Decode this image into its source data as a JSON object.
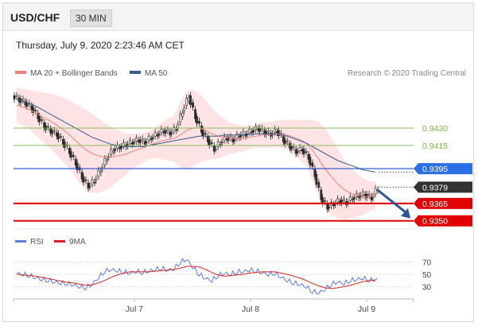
{
  "header": {
    "symbol": "USD/CHF",
    "timeframe": "30 MIN"
  },
  "datetime": "Thursday, July 9, 2020 2:23:46 AM CET",
  "legend": {
    "item1": "MA 20 + Bollinger Bands",
    "item2": "MA 50",
    "credit": "Research © 2020 Trading Central"
  },
  "rsi_legend": {
    "item1": "RSI",
    "item2": "9MA"
  },
  "colors": {
    "ma20": "#f08080",
    "ma50": "#3a5a8c",
    "band_fill": "#fde3e3",
    "green": "#7ab648",
    "blue_line": "#1f4fd0",
    "red_line": "#e00000",
    "current": "#333333",
    "blue_label": "#2a6ee8",
    "rsi": "#5a7ee0",
    "rsi_ma": "#e02020"
  },
  "chart_data": [
    {
      "type": "candlestick",
      "x_tick_labels": [
        "Jul 7",
        "Jul 8",
        "Jul 9"
      ],
      "levels": [
        {
          "value": 0.943,
          "label": "0.9430",
          "style": "green"
        },
        {
          "value": 0.9415,
          "label": "0.9415",
          "style": "green"
        },
        {
          "value": 0.9395,
          "label": "0.9395",
          "style": "blue"
        },
        {
          "value": 0.9379,
          "label": "0.9379",
          "style": "current"
        },
        {
          "value": 0.9365,
          "label": "0.9365",
          "style": "red"
        },
        {
          "value": 0.935,
          "label": "0.9350",
          "style": "red"
        }
      ],
      "close_series": [
        0.9455,
        0.9452,
        0.9448,
        0.944,
        0.9432,
        0.9428,
        0.9425,
        0.9418,
        0.941,
        0.94,
        0.9388,
        0.938,
        0.9385,
        0.9395,
        0.9405,
        0.9412,
        0.9414,
        0.9416,
        0.9418,
        0.942,
        0.9418,
        0.9422,
        0.9425,
        0.9428,
        0.9426,
        0.943,
        0.9445,
        0.9458,
        0.944,
        0.9428,
        0.942,
        0.9412,
        0.9418,
        0.9422,
        0.942,
        0.9424,
        0.9425,
        0.9428,
        0.943,
        0.9427,
        0.9425,
        0.9428,
        0.942,
        0.9415,
        0.941,
        0.9412,
        0.9405,
        0.939,
        0.937,
        0.9362,
        0.9365,
        0.9368,
        0.9366,
        0.937,
        0.9372,
        0.9373,
        0.937,
        0.9379
      ],
      "ma20_series": [
        0.945,
        0.9448,
        0.9446,
        0.9443,
        0.944,
        0.9437,
        0.9434,
        0.943,
        0.9426,
        0.9421,
        0.9416,
        0.9411,
        0.9408,
        0.9406,
        0.9405,
        0.9405,
        0.9406,
        0.9407,
        0.9409,
        0.9411,
        0.9413,
        0.9415,
        0.9417,
        0.9419,
        0.942,
        0.9421,
        0.9424,
        0.9428,
        0.943,
        0.943,
        0.9428,
        0.9425,
        0.9423,
        0.9422,
        0.9421,
        0.9421,
        0.9421,
        0.9422,
        0.9423,
        0.9424,
        0.9424,
        0.9425,
        0.9425,
        0.9424,
        0.9422,
        0.942,
        0.9417,
        0.9411,
        0.9403,
        0.9395,
        0.9388,
        0.9382,
        0.9377,
        0.9374,
        0.9372,
        0.9371,
        0.9371,
        0.9372
      ],
      "ma50_series": [
        0.9455,
        0.9453,
        0.9451,
        0.9449,
        0.9446,
        0.9443,
        0.944,
        0.9437,
        0.9434,
        0.9431,
        0.9428,
        0.9425,
        0.9422,
        0.942,
        0.9418,
        0.9416,
        0.9415,
        0.9414,
        0.9414,
        0.9414,
        0.9414,
        0.9415,
        0.9416,
        0.9417,
        0.9418,
        0.9419,
        0.942,
        0.9421,
        0.9422,
        0.9423,
        0.9423,
        0.9423,
        0.9423,
        0.9424,
        0.9424,
        0.9424,
        0.9424,
        0.9425,
        0.9425,
        0.9425,
        0.9425,
        0.9425,
        0.9424,
        0.9423,
        0.9421,
        0.9419,
        0.9417,
        0.9414,
        0.9411,
        0.9408,
        0.9405,
        0.9402,
        0.94,
        0.9398,
        0.9396,
        0.9394,
        0.9393,
        0.9392
      ],
      "band_width": [
        0.0015,
        0.0016,
        0.0017,
        0.0019,
        0.0021,
        0.0023,
        0.0025,
        0.0027,
        0.0029,
        0.0031,
        0.0033,
        0.0035,
        0.0034,
        0.0032,
        0.0029,
        0.0026,
        0.0022,
        0.0019,
        0.0016,
        0.0014,
        0.0013,
        0.0012,
        0.0013,
        0.0016,
        0.0018,
        0.002,
        0.0028,
        0.0034,
        0.0033,
        0.003,
        0.0026,
        0.0022,
        0.0019,
        0.0016,
        0.0013,
        0.0012,
        0.0011,
        0.001,
        0.001,
        0.0011,
        0.0011,
        0.0011,
        0.0012,
        0.0013,
        0.0015,
        0.0017,
        0.002,
        0.0026,
        0.0032,
        0.0035,
        0.0033,
        0.003,
        0.0026,
        0.0022,
        0.0019,
        0.0016,
        0.0013,
        0.0012
      ],
      "ylim": [
        0.9345,
        0.9465
      ]
    },
    {
      "type": "line",
      "title": "RSI",
      "y_tick_labels": [
        "70",
        "50",
        "30"
      ],
      "y_ticks": [
        70,
        50,
        30
      ],
      "ylim": [
        15,
        85
      ],
      "rsi_series": [
        52,
        50,
        48,
        45,
        42,
        40,
        38,
        36,
        35,
        33,
        30,
        28,
        34,
        45,
        55,
        58,
        56,
        54,
        52,
        55,
        53,
        56,
        58,
        60,
        57,
        59,
        70,
        75,
        62,
        50,
        44,
        40,
        48,
        52,
        50,
        54,
        55,
        57,
        56,
        53,
        50,
        52,
        46,
        40,
        36,
        34,
        30,
        22,
        20,
        26,
        34,
        38,
        35,
        40,
        42,
        44,
        40,
        42
      ],
      "rsi_ma_series": [
        50,
        49,
        48,
        47,
        45,
        43,
        41,
        39,
        37,
        36,
        34,
        32,
        33,
        36,
        40,
        45,
        49,
        52,
        54,
        54,
        54,
        54,
        55,
        56,
        57,
        58,
        60,
        63,
        63,
        62,
        58,
        53,
        49,
        47,
        48,
        49,
        50,
        52,
        53,
        54,
        54,
        54,
        52,
        50,
        47,
        44,
        40,
        35,
        31,
        28,
        27,
        28,
        30,
        32,
        35,
        38,
        40,
        41
      ]
    }
  ]
}
